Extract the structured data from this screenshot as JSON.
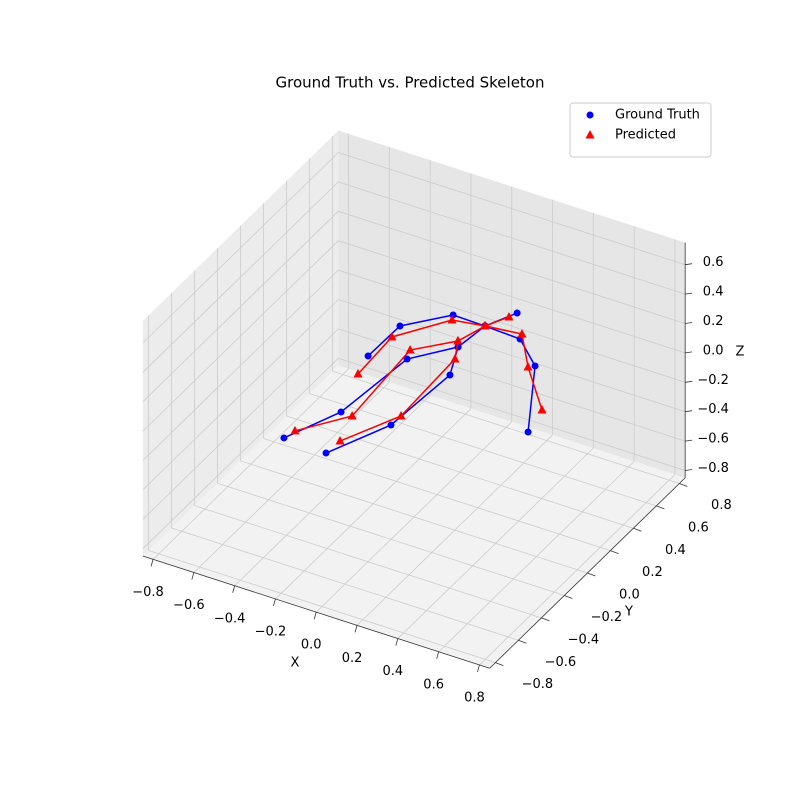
{
  "chart_data": {
    "type": "scatter3d-lines",
    "title": "Ground Truth vs. Predicted Skeleton",
    "xlabel": "X",
    "ylabel": "Y",
    "zlabel": "Z",
    "xlim": [
      -0.85,
      0.85
    ],
    "ylim": [
      -0.85,
      0.85
    ],
    "zlim": [
      -0.85,
      0.75
    ],
    "xticks": [
      {
        "value": -0.8,
        "label": "−0.8"
      },
      {
        "value": -0.6,
        "label": "−0.6"
      },
      {
        "value": -0.4,
        "label": "−0.4"
      },
      {
        "value": -0.2,
        "label": "−0.2"
      },
      {
        "value": 0,
        "label": "0.0"
      },
      0.2,
      0.4,
      0.6,
      0.8
    ],
    "yticks": [
      {
        "value": -0.8,
        "label": "−0.8"
      },
      {
        "value": -0.6,
        "label": "−0.6"
      },
      {
        "value": -0.4,
        "label": "−0.4"
      },
      {
        "value": -0.2,
        "label": "−0.2"
      },
      {
        "value": 0,
        "label": "0.0"
      },
      0.2,
      0.4,
      0.6,
      0.8
    ],
    "zticks": [
      {
        "value": -0.8,
        "label": "−0.8"
      },
      {
        "value": -0.6,
        "label": "−0.6"
      },
      {
        "value": -0.4,
        "label": "−0.4"
      },
      {
        "value": -0.2,
        "label": "−0.2"
      },
      {
        "value": 0,
        "label": "0.0"
      },
      0.2,
      0.4,
      0.6
    ],
    "grid": true,
    "legend": "upper right",
    "series": [
      {
        "name": "Ground Truth",
        "color": "#0000ff",
        "marker": "o",
        "x": [
          0.012,
          -0.008,
          -0.15,
          -0.193,
          -0.305,
          null,
          0.012,
          -0.147,
          -0.301,
          -0.305,
          null,
          -0.008,
          0.068,
          0.04,
          -0.093,
          null,
          0.012,
          0.19,
          0.347,
          0.571,
          null,
          0.012,
          0.081
        ],
        "y": [
          0.596,
          0.397,
          0.206,
          -0.292,
          -0.59,
          null,
          0.596,
          0.601,
          0.412,
          0.142,
          null,
          0.397,
          0.192,
          -0.271,
          -0.6,
          null,
          0.596,
          0.585,
          0.437,
          -0.021,
          null,
          0.596,
          0.753
        ],
        "z": [
          0,
          0,
          0,
          0,
          0,
          null,
          0,
          0,
          0,
          0,
          null,
          0,
          0,
          0,
          0,
          null,
          0,
          0,
          0,
          0,
          null,
          0,
          0
        ]
      },
      {
        "name": "Predicted",
        "color": "#ff0000",
        "marker": "^",
        "x": [
          0.012,
          -0.031,
          -0.173,
          -0.137,
          -0.291,
          null,
          0.012,
          -0.132,
          -0.289,
          -0.274,
          null,
          -0.031,
          0.026,
          0.043,
          -0.087,
          null,
          0.012,
          0.178,
          0.325,
          0.539,
          null,
          0.012,
          0.066
        ],
        "y": [
          0.596,
          0.437,
          0.273,
          -0.295,
          -0.519,
          null,
          0.596,
          0.565,
          0.321,
          -0.001,
          null,
          0.437,
          0.31,
          -0.189,
          -0.489,
          null,
          0.596,
          0.623,
          0.415,
          0.157,
          null,
          0.596,
          0.709
        ],
        "z": [
          0,
          0,
          0,
          0,
          0,
          null,
          0,
          0,
          0,
          0,
          null,
          0,
          0,
          0,
          0,
          null,
          0,
          0,
          0,
          0,
          null,
          0,
          0
        ]
      }
    ]
  }
}
